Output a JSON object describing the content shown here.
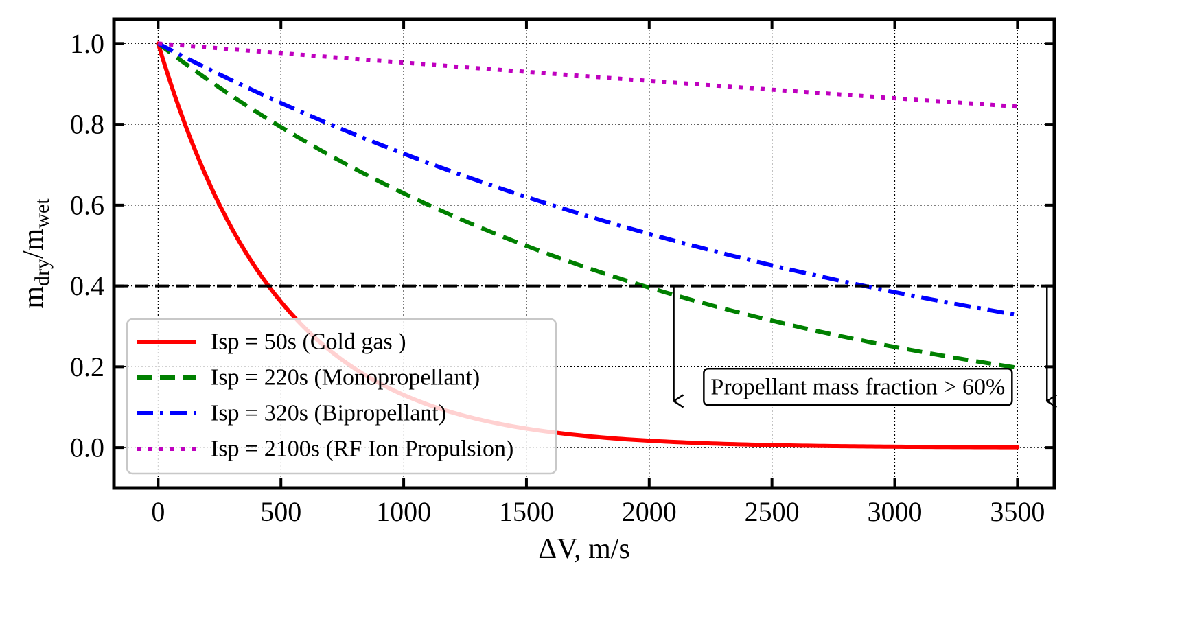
{
  "chart_data": {
    "type": "line",
    "xlabel": "ΔV, m/s",
    "ylabel": {
      "base": "m",
      "num_sub": "dry",
      "den_sub": "wet"
    },
    "xlim": [
      -180,
      3650
    ],
    "ylim": [
      -0.1,
      1.06
    ],
    "xticks": [
      0,
      500,
      1000,
      1500,
      2000,
      2500,
      3000,
      3500
    ],
    "yticks": [
      0.0,
      0.2,
      0.4,
      0.6,
      0.8,
      1.0
    ],
    "ytick_labels": [
      "0.0",
      "0.2",
      "0.4",
      "0.6",
      "0.8",
      "1.0"
    ],
    "grid": true,
    "legend_position": "lower-left",
    "series": [
      {
        "name": "Isp = 50s (Cold gas )",
        "isp": 50,
        "color": "#ff0000",
        "style": "solid",
        "x": [
          0,
          250,
          500,
          750,
          1000,
          1250,
          1500,
          1750,
          2000,
          2250,
          2500,
          2750,
          3000,
          3250,
          3500
        ],
        "y": [
          1.0,
          0.6,
          0.361,
          0.217,
          0.13,
          0.078,
          0.047,
          0.028,
          0.017,
          0.01,
          0.0061,
          0.0037,
          0.0022,
          0.0013,
          0.0008
        ]
      },
      {
        "name": "Isp = 220s (Monopropellant)",
        "isp": 220,
        "color": "#008000",
        "style": "dashed",
        "x": [
          0,
          250,
          500,
          750,
          1000,
          1250,
          1500,
          1750,
          2000,
          2250,
          2500,
          2750,
          3000,
          3250,
          3500
        ],
        "y": [
          1.0,
          0.89,
          0.793,
          0.706,
          0.629,
          0.56,
          0.499,
          0.444,
          0.395,
          0.352,
          0.313,
          0.279,
          0.248,
          0.221,
          0.197
        ]
      },
      {
        "name": "Isp = 320s (Bipropellant)",
        "isp": 320,
        "color": "#0000ff",
        "style": "dashdot",
        "x": [
          0,
          250,
          500,
          750,
          1000,
          1250,
          1500,
          1750,
          2000,
          2250,
          2500,
          2750,
          3000,
          3250,
          3500
        ],
        "y": [
          1.0,
          0.923,
          0.853,
          0.788,
          0.727,
          0.671,
          0.62,
          0.573,
          0.529,
          0.488,
          0.451,
          0.417,
          0.385,
          0.355,
          0.328
        ]
      },
      {
        "name": "Isp = 2100s (RF Ion Propulsion)",
        "isp": 2100,
        "color": "#bf00bf",
        "style": "dotted",
        "x": [
          0,
          250,
          500,
          750,
          1000,
          1250,
          1500,
          1750,
          2000,
          2250,
          2500,
          2750,
          3000,
          3250,
          3500
        ],
        "y": [
          1.0,
          0.988,
          0.976,
          0.964,
          0.953,
          0.941,
          0.93,
          0.919,
          0.908,
          0.897,
          0.886,
          0.875,
          0.865,
          0.854,
          0.844
        ]
      }
    ],
    "threshold": {
      "y": 0.4,
      "color": "#000000",
      "style": "dashed"
    },
    "arrows": [
      {
        "x": 2100,
        "from_y": 0.4,
        "to_y": 0.115
      },
      {
        "x": 3620,
        "from_y": 0.4,
        "to_y": 0.115
      }
    ],
    "annotation": {
      "text": "Propellant mass fraction > 60%",
      "x": 2850,
      "y": 0.15
    }
  }
}
